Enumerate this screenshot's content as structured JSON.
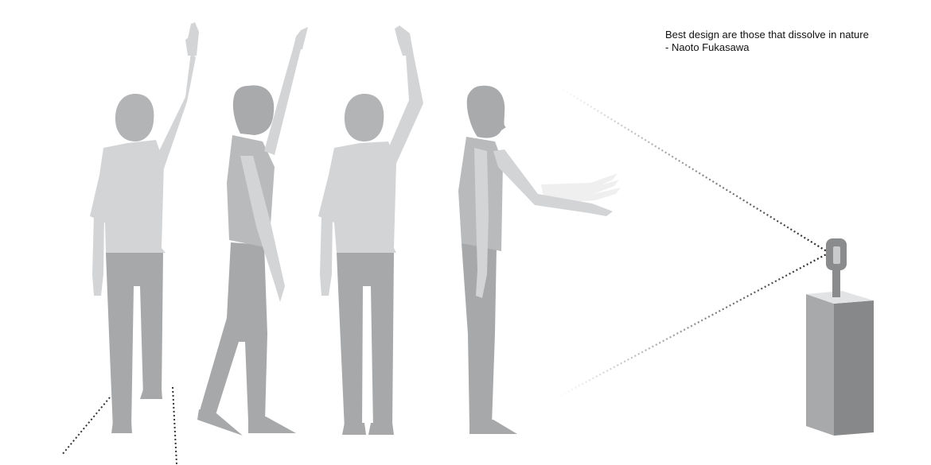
{
  "quote": {
    "text": "Best design are those that dissolve in nature",
    "author": "- Naoto Fukasawa"
  },
  "colors": {
    "background": "#ffffff",
    "shirt": "#d3d4d6",
    "pants": "#a7a8aa",
    "head": "#b3b4b6",
    "pedestal_front": "#a8a9ab",
    "pedestal_side": "#87888a",
    "pedestal_top": "#e2e3e4",
    "sensor": "#8a8b8d",
    "dotted_line": "#333333"
  }
}
